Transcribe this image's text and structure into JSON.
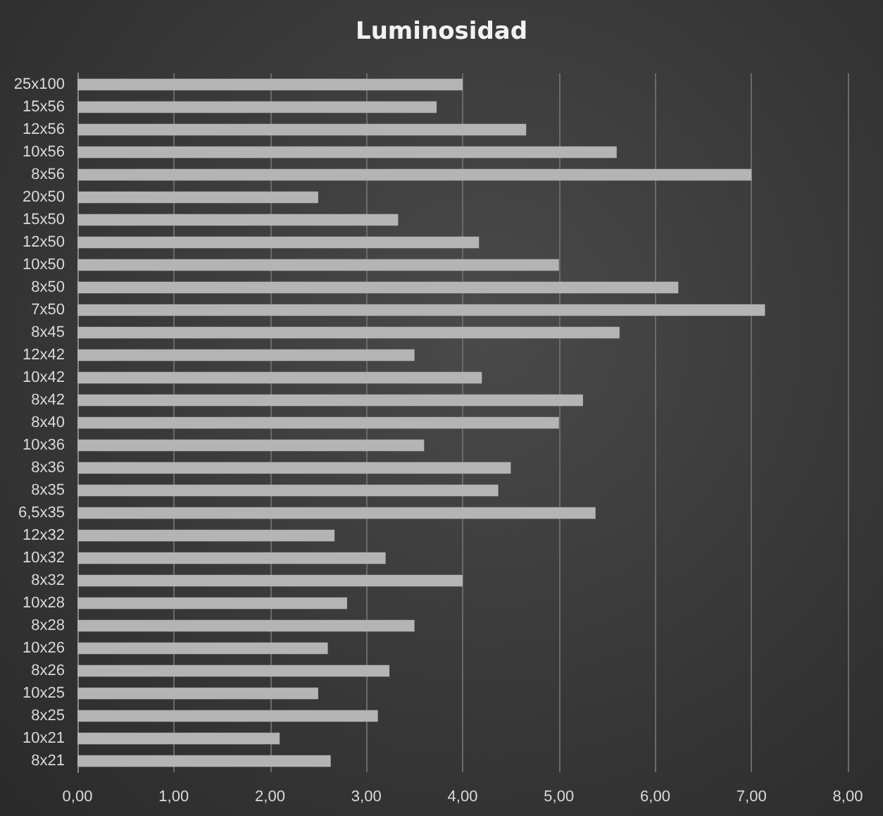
{
  "chart_data": {
    "type": "bar",
    "orientation": "horizontal",
    "title": "Luminosidad",
    "categories": [
      "25x100",
      "15x56",
      "12x56",
      "10x56",
      "8x56",
      "20x50",
      "15x50",
      "12x50",
      "10x50",
      "8x50",
      "7x50",
      "8x45",
      "12x42",
      "10x42",
      "8x42",
      "8x40",
      "10x36",
      "8x36",
      "8x35",
      "6,5x35",
      "12x32",
      "10x32",
      "8x32",
      "10x28",
      "8x28",
      "10x26",
      "8x26",
      "10x25",
      "8x25",
      "10x21",
      "8x21"
    ],
    "values": [
      4.0,
      3.73,
      4.66,
      5.6,
      7.0,
      2.5,
      3.33,
      4.17,
      5.0,
      6.24,
      7.14,
      5.63,
      3.5,
      4.2,
      5.25,
      5.0,
      3.6,
      4.5,
      4.37,
      5.38,
      2.67,
      3.2,
      4.0,
      2.8,
      3.5,
      2.6,
      3.24,
      2.5,
      3.12,
      2.1,
      2.63
    ],
    "color": "#b4b4b4",
    "xlim": [
      0,
      8
    ],
    "xticks": [
      {
        "value": 0,
        "label": "0,00"
      },
      {
        "value": 1,
        "label": "1,00"
      },
      {
        "value": 2,
        "label": "2,00"
      },
      {
        "value": 3,
        "label": "3,00"
      },
      {
        "value": 4,
        "label": "4,00"
      },
      {
        "value": 5,
        "label": "5,00"
      },
      {
        "value": 6,
        "label": "6,00"
      },
      {
        "value": 7,
        "label": "7,00"
      },
      {
        "value": 8,
        "label": "8,00"
      }
    ],
    "grid": "x"
  }
}
